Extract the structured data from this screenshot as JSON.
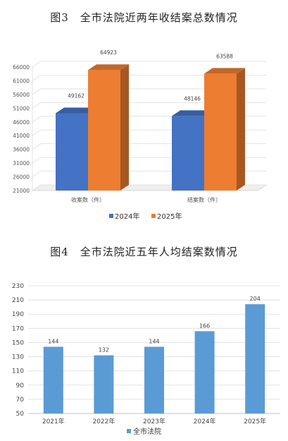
{
  "chart_data": [
    {
      "type": "bar",
      "title": "图3　全市法院近两年收结案总数情况",
      "categories": [
        "收案数（件）",
        "结案数（件）"
      ],
      "series": [
        {
          "name": "2024年",
          "values": [
            49162,
            48146
          ],
          "color": "#4472c4"
        },
        {
          "name": "2025年",
          "values": [
            64923,
            63588
          ],
          "color": "#ed7d31"
        }
      ],
      "yticks": [
        21000,
        26000,
        31000,
        36000,
        41000,
        46000,
        51000,
        56000,
        61000,
        66000
      ],
      "ylim": [
        21000,
        66000
      ],
      "style": "3d-column",
      "legend": "bottom"
    },
    {
      "type": "bar",
      "title": "图4　全市法院近五年人均结案数情况",
      "categories": [
        "2021年",
        "2022年",
        "2023年",
        "2024年",
        "2025年"
      ],
      "series": [
        {
          "name": "全市法院",
          "values": [
            144,
            132,
            144,
            166,
            204
          ],
          "color": "#5b9bd5"
        }
      ],
      "yticks": [
        50,
        70,
        90,
        110,
        130,
        150,
        170,
        190,
        210,
        230
      ],
      "ylim": [
        50,
        230
      ],
      "grid": true,
      "legend": "bottom"
    }
  ]
}
